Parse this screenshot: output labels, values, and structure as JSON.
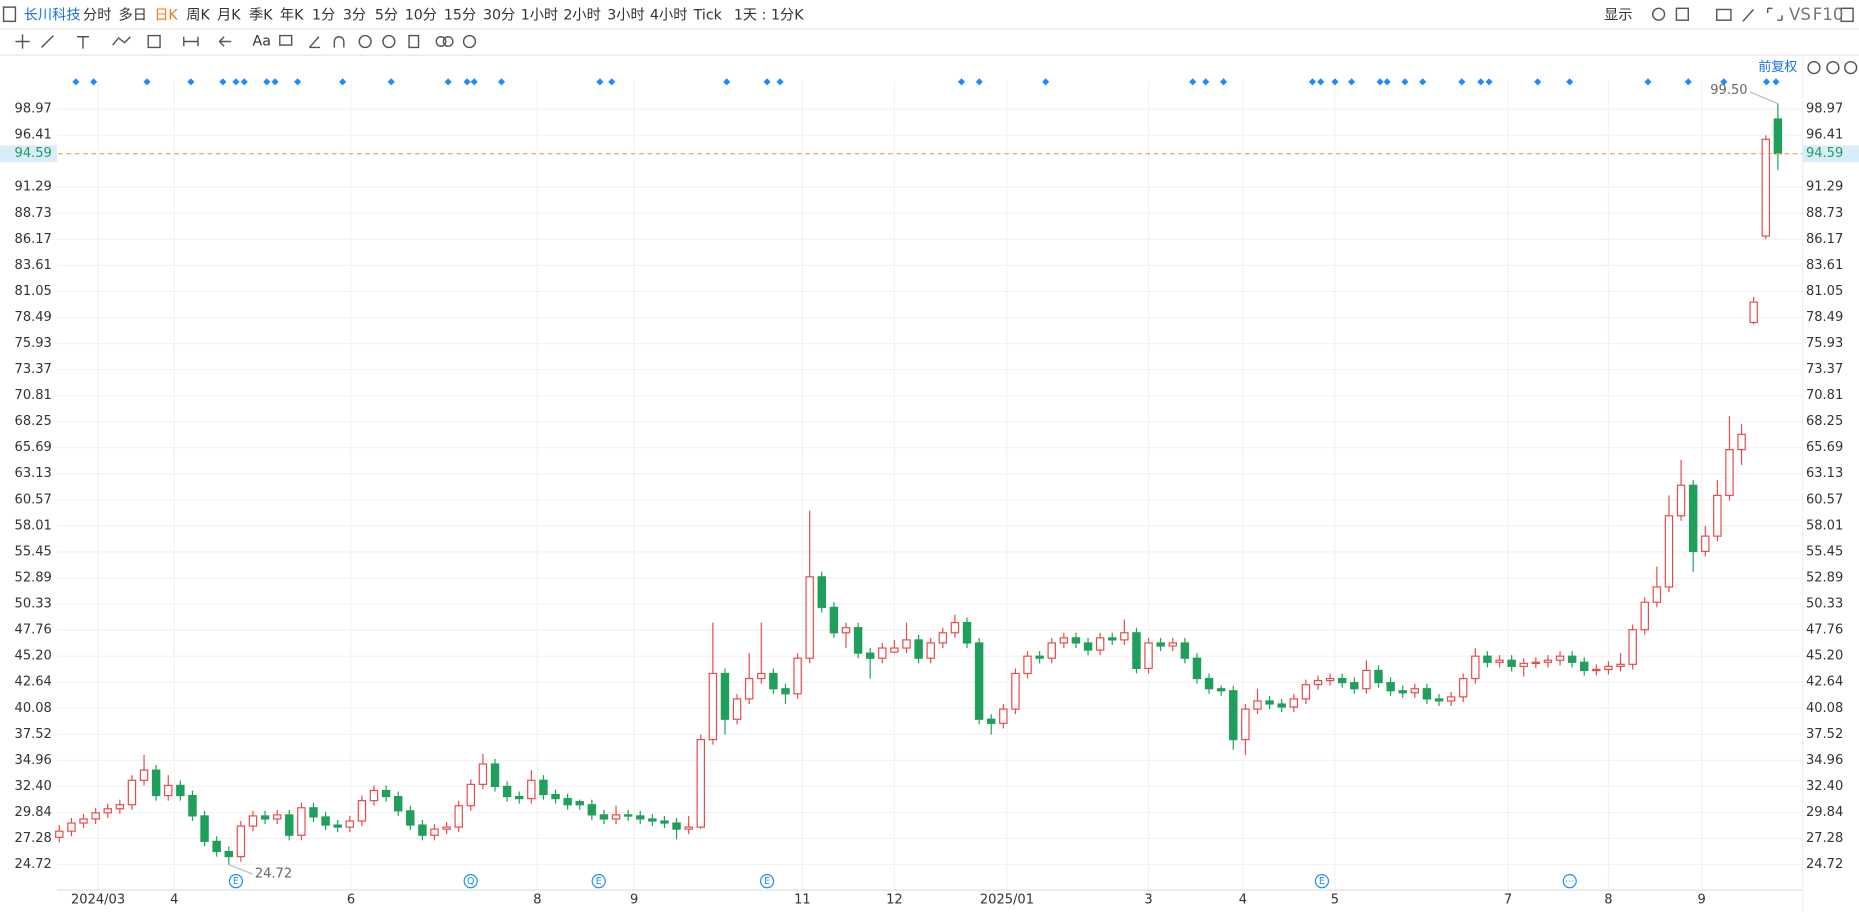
{
  "toolbar": {
    "symbol": "长川科技",
    "periods": [
      "分时",
      "多日",
      "日K",
      "周K",
      "月K",
      "季K",
      "年K",
      "1分",
      "3分",
      "5分",
      "10分",
      "15分",
      "30分",
      "1小时",
      "2小时",
      "3小时",
      "4小时",
      "Tick"
    ],
    "active_period": "日K",
    "interval": "1天 : 1分K",
    "display": "显示",
    "vs": "VS",
    "f10": "F10"
  },
  "chart_data": {
    "type": "candlestick",
    "adjust": "前复权",
    "up_color": "#e84a4a",
    "down_color": "#1ea05a",
    "grid": true,
    "candles": [
      [
        27.4,
        28.6,
        26.9,
        28
      ],
      [
        28,
        29.3,
        27.5,
        28.8
      ],
      [
        28.8,
        29.7,
        28.3,
        29.2
      ],
      [
        29.2,
        30.3,
        28.7,
        29.8
      ],
      [
        29.8,
        30.7,
        29.3,
        30.2
      ],
      [
        30.2,
        31.1,
        29.7,
        30.6
      ],
      [
        30.6,
        33.5,
        30.1,
        33
      ],
      [
        33,
        35.5,
        32.5,
        34
      ],
      [
        34,
        34.5,
        31,
        31.5
      ],
      [
        31.5,
        33.5,
        31,
        32.5
      ],
      [
        32.5,
        33,
        31,
        31.5
      ],
      [
        31.5,
        32,
        29,
        29.5
      ],
      [
        29.5,
        30,
        26.5,
        27
      ],
      [
        27,
        27.5,
        25.5,
        26
      ],
      [
        26,
        26.5,
        24.72,
        25.5
      ],
      [
        25.5,
        29,
        25,
        28.5
      ],
      [
        28.5,
        30,
        28,
        29.5
      ],
      [
        29.5,
        30,
        28.7,
        29.2
      ],
      [
        29.2,
        30.1,
        28.7,
        29.6
      ],
      [
        29.6,
        30.1,
        27.1,
        27.6
      ],
      [
        27.6,
        30.8,
        27.1,
        30.3
      ],
      [
        30.3,
        30.8,
        28.9,
        29.4
      ],
      [
        29.4,
        29.9,
        28.1,
        28.6
      ],
      [
        28.6,
        29.1,
        27.9,
        28.4
      ],
      [
        28.4,
        29.5,
        27.9,
        29
      ],
      [
        29,
        31.5,
        28.5,
        31
      ],
      [
        31,
        32.5,
        30.5,
        32
      ],
      [
        32,
        32.5,
        30.9,
        31.4
      ],
      [
        31.4,
        31.9,
        29.5,
        30
      ],
      [
        30,
        30.5,
        28.1,
        28.6
      ],
      [
        28.6,
        29.1,
        27.1,
        27.6
      ],
      [
        27.6,
        28.7,
        27.1,
        28.2
      ],
      [
        28.2,
        28.9,
        27.7,
        28.4
      ],
      [
        28.4,
        31,
        27.9,
        30.5
      ],
      [
        30.5,
        33.1,
        30,
        32.6
      ],
      [
        32.6,
        35.6,
        32.1,
        34.6
      ],
      [
        34.6,
        35.1,
        31.9,
        32.4
      ],
      [
        32.4,
        32.9,
        30.9,
        31.4
      ],
      [
        31.4,
        31.9,
        30.7,
        31.2
      ],
      [
        31.2,
        34,
        30.7,
        33
      ],
      [
        33,
        33.5,
        31.1,
        31.6
      ],
      [
        31.6,
        32.1,
        30.7,
        31.2
      ],
      [
        31.2,
        31.7,
        30.1,
        30.6
      ],
      [
        30.9,
        31.1,
        30.1,
        30.6
      ],
      [
        30.6,
        31.1,
        29.1,
        29.6
      ],
      [
        29.6,
        30.1,
        28.7,
        29.2
      ],
      [
        29.2,
        30.5,
        28.7,
        29.6
      ],
      [
        29.6,
        30.1,
        29,
        29.5
      ],
      [
        29.5,
        30,
        28.7,
        29.2
      ],
      [
        29.2,
        29.7,
        28.5,
        29
      ],
      [
        29,
        29.5,
        28.3,
        28.8
      ],
      [
        28.8,
        29.3,
        27.2,
        28.2
      ],
      [
        28.2,
        29.5,
        27.7,
        28.4
      ],
      [
        28.4,
        37.5,
        28.2,
        37
      ],
      [
        37,
        48.5,
        36.5,
        43.5
      ],
      [
        43.5,
        44,
        37.5,
        39
      ],
      [
        39,
        41.5,
        38.5,
        41
      ],
      [
        41,
        45.5,
        40.5,
        43
      ],
      [
        43,
        48.5,
        42.5,
        43.5
      ],
      [
        43.5,
        44,
        41.5,
        42
      ],
      [
        42,
        42.5,
        40.5,
        41.5
      ],
      [
        41.5,
        45.5,
        41,
        45
      ],
      [
        45,
        59.5,
        44.5,
        53
      ],
      [
        53,
        53.5,
        49.5,
        50
      ],
      [
        50,
        50.5,
        47,
        47.5
      ],
      [
        47.5,
        48.5,
        46,
        48
      ],
      [
        48,
        48.5,
        45,
        45.5
      ],
      [
        45.5,
        46,
        43,
        45
      ],
      [
        45,
        46.5,
        44.5,
        46
      ],
      [
        45.6,
        46.8,
        45.5,
        46
      ],
      [
        46,
        48.5,
        45.5,
        46.8
      ],
      [
        46.8,
        47.3,
        44.5,
        45
      ],
      [
        45,
        47,
        44.5,
        46.5
      ],
      [
        46.5,
        48,
        46,
        47.5
      ],
      [
        47.5,
        49.3,
        47,
        48.5
      ],
      [
        48.5,
        49,
        46,
        46.5
      ],
      [
        46.5,
        47,
        38.5,
        39
      ],
      [
        39,
        39.5,
        37.5,
        38.6
      ],
      [
        38.6,
        40.5,
        38.1,
        40
      ],
      [
        40,
        44,
        39.5,
        43.5
      ],
      [
        43.5,
        45.7,
        43,
        45.2
      ],
      [
        45.2,
        45.7,
        44.5,
        45
      ],
      [
        45,
        47,
        44.5,
        46.5
      ],
      [
        46.5,
        47.5,
        46,
        47
      ],
      [
        47,
        47.5,
        46,
        46.5
      ],
      [
        46.5,
        47,
        45.3,
        45.8
      ],
      [
        45.8,
        47.5,
        45.3,
        47
      ],
      [
        47,
        47.5,
        46.3,
        46.8
      ],
      [
        46.8,
        48.8,
        46.3,
        47.5
      ],
      [
        47.5,
        48,
        43.5,
        44
      ],
      [
        44,
        47,
        43.5,
        46.5
      ],
      [
        46.5,
        47,
        45.7,
        46.2
      ],
      [
        46.2,
        47,
        45.7,
        46.5
      ],
      [
        46.5,
        47,
        44.5,
        45
      ],
      [
        45,
        45.5,
        42.5,
        43
      ],
      [
        43,
        43.5,
        41.5,
        42
      ],
      [
        42,
        42.3,
        41.3,
        41.8
      ],
      [
        41.8,
        42.3,
        36,
        37
      ],
      [
        37,
        40.5,
        35.5,
        40
      ],
      [
        40,
        42,
        39.5,
        40.8
      ],
      [
        40.8,
        41.3,
        40,
        40.5
      ],
      [
        40.5,
        41,
        39.7,
        40.2
      ],
      [
        40.2,
        41.5,
        39.7,
        41
      ],
      [
        41,
        42.9,
        40.5,
        42.4
      ],
      [
        42.4,
        43.3,
        41.9,
        42.8
      ],
      [
        42.8,
        43.5,
        42.3,
        43
      ],
      [
        43,
        43.5,
        42.1,
        42.6
      ],
      [
        42.6,
        43.1,
        41.5,
        42
      ],
      [
        42,
        44.8,
        41.5,
        43.8
      ],
      [
        43.8,
        44.3,
        42.1,
        42.6
      ],
      [
        42.6,
        43.1,
        41.3,
        41.8
      ],
      [
        41.8,
        42.3,
        41.1,
        41.6
      ],
      [
        41.6,
        42.5,
        41.1,
        42
      ],
      [
        42,
        42.5,
        40.5,
        41
      ],
      [
        41,
        41.5,
        40.3,
        40.8
      ],
      [
        40.8,
        41.7,
        40.3,
        41.2
      ],
      [
        41.2,
        43.5,
        40.7,
        43
      ],
      [
        43,
        46,
        42.5,
        45.2
      ],
      [
        45.2,
        45.7,
        44.1,
        44.6
      ],
      [
        44.6,
        45.3,
        44.1,
        44.8
      ],
      [
        44.8,
        45.3,
        43.7,
        44.2
      ],
      [
        44.2,
        45,
        43.2,
        44.5
      ],
      [
        44.5,
        45.1,
        44,
        44.6
      ],
      [
        44.6,
        45.3,
        44.1,
        44.8
      ],
      [
        44.8,
        45.7,
        44.3,
        45.2
      ],
      [
        45.2,
        45.7,
        44.1,
        44.6
      ],
      [
        44.6,
        45.1,
        43.3,
        43.8
      ],
      [
        43.8,
        44.4,
        43.3,
        43.9
      ],
      [
        43.9,
        44.7,
        43.4,
        44.2
      ],
      [
        44.2,
        45.5,
        43.7,
        44.4
      ],
      [
        44.4,
        48.3,
        43.9,
        47.8
      ],
      [
        47.8,
        51,
        47.3,
        50.5
      ],
      [
        50.5,
        54,
        50,
        52
      ],
      [
        52,
        61,
        51.5,
        59
      ],
      [
        59,
        64.5,
        58.5,
        62
      ],
      [
        62,
        62.5,
        53.5,
        55.5
      ],
      [
        55.5,
        58,
        55,
        57
      ],
      [
        57,
        62.5,
        56.5,
        61
      ],
      [
        61,
        68.8,
        60.5,
        65.5
      ],
      [
        65.5,
        68,
        64,
        67
      ],
      [
        78,
        80.5,
        77.8,
        80
      ],
      [
        86.5,
        96.4,
        86.2,
        96
      ],
      [
        98,
        99.5,
        93,
        94.59
      ]
    ],
    "xlim": [
      -0.2,
      144
    ],
    "xticks": [
      {
        "value": 3.2,
        "label": "2024/03"
      },
      {
        "value": 9.5,
        "label": "4"
      },
      {
        "value": 24.1,
        "label": "6"
      },
      {
        "value": 39.5,
        "label": "8"
      },
      {
        "value": 47.5,
        "label": "9"
      },
      {
        "value": 61.4,
        "label": "11"
      },
      {
        "value": 69,
        "label": "12"
      },
      {
        "value": 78.3,
        "label": "2025/01"
      },
      {
        "value": 90,
        "label": "3"
      },
      {
        "value": 97.8,
        "label": "4"
      },
      {
        "value": 105.4,
        "label": "5"
      },
      {
        "value": 119.7,
        "label": "7"
      },
      {
        "value": 128,
        "label": "8"
      },
      {
        "value": 135.7,
        "label": "9"
      }
    ],
    "ylim": [
      22.27,
      104.1
    ],
    "yticks": [
      24.72,
      27.28,
      29.84,
      {
        "value": 32.4,
        "label": "32.40"
      },
      34.96,
      37.52,
      40.08,
      42.64,
      {
        "value": 45.2,
        "label": "45.20"
      },
      47.76,
      50.33,
      52.89,
      55.45,
      58.01,
      60.57,
      63.13,
      65.69,
      68.25,
      70.81,
      73.37,
      75.93,
      78.49,
      81.05,
      83.61,
      86.17,
      88.73,
      91.29,
      96.41,
      98.97
    ],
    "last_price": 94.59,
    "annotations": [
      {
        "value": 99.5,
        "label": "99.50"
      },
      {
        "value": 24.72,
        "label": "24.72"
      }
    ],
    "events": [
      "E",
      "Q",
      "E",
      "E",
      "E",
      "⋯"
    ]
  }
}
